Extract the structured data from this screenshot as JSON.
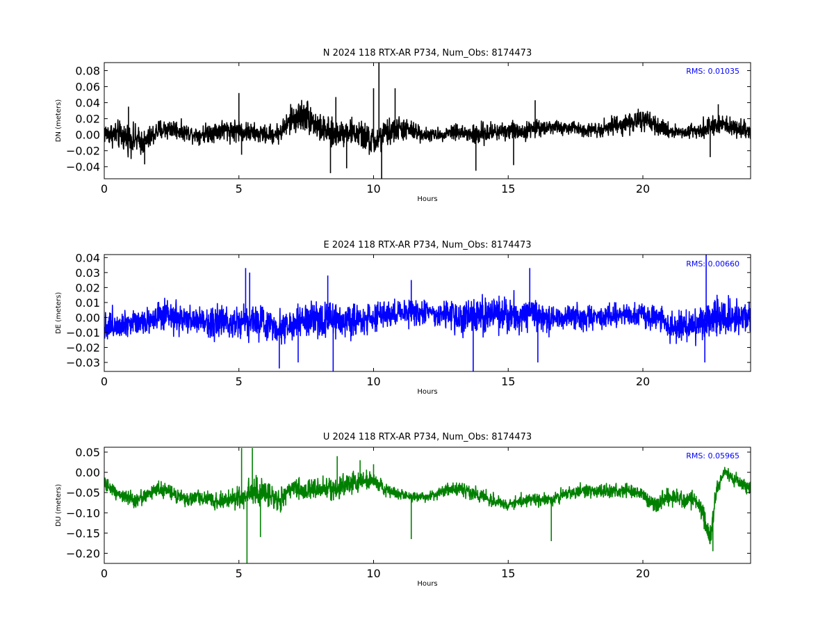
{
  "chart_data": [
    {
      "type": "line",
      "title": "N 2024 118 RTX-AR  P734, Num_Obs: 8174473",
      "xlabel": "Hours",
      "ylabel": "DN (meters)",
      "xlim": [
        0,
        24
      ],
      "ylim": [
        -0.055,
        0.09
      ],
      "xticks": [
        0,
        5,
        10,
        15,
        20
      ],
      "yticks": [
        -0.04,
        -0.02,
        0.0,
        0.02,
        0.04,
        0.06,
        0.08
      ],
      "ytick_labels": [
        "−0.04",
        "−0.02",
        "0.00",
        "0.02",
        "0.04",
        "0.06",
        "0.08"
      ],
      "rms_text": "RMS:  0.01035",
      "rms_color": "#0000ff",
      "series_color": "#000000",
      "grid": false,
      "envelope": {
        "x": [
          0,
          0.5,
          1,
          1.5,
          2,
          2.5,
          3,
          3.5,
          4,
          4.5,
          5,
          5.5,
          6,
          6.5,
          7,
          7.5,
          8,
          8.5,
          9,
          9.5,
          10,
          10.5,
          11,
          11.5,
          12,
          12.5,
          13,
          13.5,
          14,
          14.5,
          15,
          15.5,
          16,
          16.5,
          17,
          17.5,
          18,
          18.5,
          19,
          19.5,
          20,
          20.5,
          21,
          21.5,
          22,
          22.5,
          23,
          23.5,
          24
        ],
        "mean": [
          0.002,
          0.0,
          -0.005,
          -0.01,
          0.005,
          0.008,
          0.003,
          0.0,
          0.004,
          0.006,
          0.005,
          0.002,
          0.0,
          0.002,
          0.02,
          0.025,
          0.008,
          0.0,
          0.005,
          0.0,
          -0.01,
          0.002,
          0.008,
          0.004,
          0.0,
          0.0,
          0.005,
          0.0,
          0.0,
          0.004,
          0.006,
          0.004,
          0.008,
          0.01,
          0.008,
          0.008,
          0.006,
          0.008,
          0.012,
          0.015,
          0.018,
          0.01,
          0.005,
          0.003,
          0.006,
          0.01,
          0.012,
          0.008,
          0.005
        ],
        "amp": [
          0.015,
          0.02,
          0.022,
          0.018,
          0.016,
          0.015,
          0.012,
          0.012,
          0.015,
          0.016,
          0.016,
          0.014,
          0.013,
          0.015,
          0.022,
          0.025,
          0.02,
          0.02,
          0.018,
          0.02,
          0.022,
          0.02,
          0.018,
          0.014,
          0.01,
          0.008,
          0.012,
          0.015,
          0.016,
          0.014,
          0.014,
          0.013,
          0.012,
          0.01,
          0.01,
          0.01,
          0.01,
          0.012,
          0.014,
          0.015,
          0.016,
          0.013,
          0.01,
          0.01,
          0.012,
          0.013,
          0.014,
          0.013,
          0.012
        ]
      },
      "spikes": [
        {
          "x": 0.9,
          "y": 0.035
        },
        {
          "x": 1.5,
          "y": -0.037
        },
        {
          "x": 5.0,
          "y": 0.052
        },
        {
          "x": 5.1,
          "y": -0.025
        },
        {
          "x": 8.4,
          "y": -0.048
        },
        {
          "x": 8.6,
          "y": 0.047
        },
        {
          "x": 9.0,
          "y": -0.042
        },
        {
          "x": 10.0,
          "y": 0.058
        },
        {
          "x": 10.2,
          "y": 0.09
        },
        {
          "x": 10.3,
          "y": -0.055
        },
        {
          "x": 10.8,
          "y": 0.058
        },
        {
          "x": 13.8,
          "y": -0.045
        },
        {
          "x": 15.2,
          "y": -0.038
        },
        {
          "x": 16.0,
          "y": 0.043
        },
        {
          "x": 22.5,
          "y": -0.028
        },
        {
          "x": 22.8,
          "y": 0.038
        }
      ]
    },
    {
      "type": "line",
      "title": "E 2024 118 RTX-AR  P734, Num_Obs: 8174473",
      "xlabel": "Hours",
      "ylabel": "DE (meters)",
      "xlim": [
        0,
        24
      ],
      "ylim": [
        -0.036,
        0.042
      ],
      "xticks": [
        0,
        5,
        10,
        15,
        20
      ],
      "yticks": [
        -0.03,
        -0.02,
        -0.01,
        0.0,
        0.01,
        0.02,
        0.03,
        0.04
      ],
      "ytick_labels": [
        "−0.03",
        "−0.02",
        "−0.01",
        "0.00",
        "0.01",
        "0.02",
        "0.03",
        "0.04"
      ],
      "rms_text": "RMS:  0.00660",
      "rms_color": "#0000ff",
      "series_color": "#0000ff",
      "grid": false,
      "envelope": {
        "x": [
          0,
          0.5,
          1,
          1.5,
          2,
          2.5,
          3,
          3.5,
          4,
          4.5,
          5,
          5.5,
          6,
          6.5,
          7,
          7.5,
          8,
          8.5,
          9,
          9.5,
          10,
          10.5,
          11,
          11.5,
          12,
          12.5,
          13,
          13.5,
          14,
          14.5,
          15,
          15.5,
          16,
          16.5,
          17,
          17.5,
          18,
          18.5,
          19,
          19.5,
          20,
          20.5,
          21,
          21.5,
          22,
          22.5,
          23,
          23.5,
          24
        ],
        "mean": [
          -0.006,
          -0.004,
          -0.003,
          -0.002,
          0.0,
          0.0,
          -0.002,
          -0.002,
          -0.003,
          -0.003,
          -0.002,
          -0.002,
          -0.004,
          -0.006,
          -0.005,
          -0.002,
          -0.002,
          -0.002,
          -0.002,
          -0.001,
          0.0,
          0.002,
          0.003,
          0.004,
          0.003,
          0.002,
          0.0,
          0.0,
          0.001,
          0.002,
          0.002,
          0.002,
          0.001,
          0.0,
          0.0,
          0.0,
          0.0,
          0.0,
          0.001,
          0.002,
          0.002,
          0.0,
          -0.005,
          -0.006,
          -0.004,
          -0.002,
          0.0,
          0.0,
          0.0
        ],
        "amp": [
          0.012,
          0.012,
          0.011,
          0.01,
          0.012,
          0.012,
          0.011,
          0.011,
          0.012,
          0.013,
          0.014,
          0.014,
          0.013,
          0.012,
          0.012,
          0.012,
          0.013,
          0.014,
          0.013,
          0.012,
          0.012,
          0.011,
          0.011,
          0.012,
          0.01,
          0.008,
          0.014,
          0.016,
          0.016,
          0.015,
          0.014,
          0.013,
          0.012,
          0.011,
          0.01,
          0.01,
          0.009,
          0.009,
          0.009,
          0.009,
          0.01,
          0.01,
          0.012,
          0.012,
          0.014,
          0.016,
          0.014,
          0.013,
          0.012
        ]
      },
      "spikes": [
        {
          "x": 5.25,
          "y": 0.033
        },
        {
          "x": 5.4,
          "y": 0.03
        },
        {
          "x": 8.3,
          "y": 0.028
        },
        {
          "x": 8.5,
          "y": -0.036
        },
        {
          "x": 11.4,
          "y": 0.025
        },
        {
          "x": 13.7,
          "y": -0.036
        },
        {
          "x": 15.8,
          "y": 0.033
        },
        {
          "x": 16.1,
          "y": -0.03
        },
        {
          "x": 22.35,
          "y": 0.042
        },
        {
          "x": 22.3,
          "y": -0.03
        },
        {
          "x": 6.5,
          "y": -0.034
        },
        {
          "x": 7.2,
          "y": -0.03
        }
      ]
    },
    {
      "type": "line",
      "title": "U 2024 118 RTX-AR  P734, Num_Obs: 8174473",
      "xlabel": "Hours",
      "ylabel": "DU (meters)",
      "xlim": [
        0,
        24
      ],
      "ylim": [
        -0.225,
        0.062
      ],
      "xticks": [
        0,
        5,
        10,
        15,
        20
      ],
      "yticks": [
        -0.2,
        -0.15,
        -0.1,
        -0.05,
        0.0,
        0.05
      ],
      "ytick_labels": [
        "−0.20",
        "−0.15",
        "−0.10",
        "−0.05",
        "0.00",
        "0.05"
      ],
      "rms_text": "RMS:  0.05965",
      "rms_color": "#0000ff",
      "series_color": "#008000",
      "grid": false,
      "envelope": {
        "x": [
          0,
          0.5,
          1,
          1.5,
          2,
          2.5,
          3,
          3.5,
          4,
          4.5,
          5,
          5.5,
          6,
          6.5,
          7,
          7.5,
          8,
          8.5,
          9,
          9.5,
          10,
          10.5,
          11,
          11.5,
          12,
          12.5,
          13,
          13.5,
          14,
          14.5,
          15,
          15.5,
          16,
          16.5,
          17,
          17.5,
          18,
          18.5,
          19,
          19.5,
          20,
          20.5,
          21,
          21.5,
          22,
          22.25,
          22.5,
          22.75,
          23,
          23.5,
          24
        ],
        "mean": [
          -0.03,
          -0.05,
          -0.07,
          -0.06,
          -0.04,
          -0.05,
          -0.07,
          -0.06,
          -0.07,
          -0.07,
          -0.06,
          -0.05,
          -0.05,
          -0.07,
          -0.04,
          -0.045,
          -0.04,
          -0.04,
          -0.03,
          -0.02,
          -0.02,
          -0.045,
          -0.055,
          -0.06,
          -0.06,
          -0.05,
          -0.04,
          -0.045,
          -0.06,
          -0.07,
          -0.08,
          -0.07,
          -0.065,
          -0.07,
          -0.055,
          -0.05,
          -0.045,
          -0.05,
          -0.045,
          -0.045,
          -0.055,
          -0.08,
          -0.06,
          -0.07,
          -0.07,
          -0.1,
          -0.16,
          -0.04,
          0.0,
          -0.02,
          -0.04
        ],
        "amp": [
          0.02,
          0.02,
          0.025,
          0.02,
          0.02,
          0.02,
          0.02,
          0.02,
          0.02,
          0.025,
          0.04,
          0.045,
          0.04,
          0.035,
          0.03,
          0.03,
          0.03,
          0.03,
          0.03,
          0.03,
          0.025,
          0.02,
          0.015,
          0.015,
          0.015,
          0.015,
          0.02,
          0.02,
          0.02,
          0.02,
          0.02,
          0.02,
          0.02,
          0.02,
          0.02,
          0.02,
          0.02,
          0.02,
          0.02,
          0.02,
          0.02,
          0.025,
          0.025,
          0.025,
          0.025,
          0.03,
          0.03,
          0.025,
          0.02,
          0.02,
          0.02
        ]
      },
      "spikes": [
        {
          "x": 5.1,
          "y": 0.06
        },
        {
          "x": 5.3,
          "y": -0.225
        },
        {
          "x": 5.5,
          "y": 0.06
        },
        {
          "x": 5.8,
          "y": -0.16
        },
        {
          "x": 8.65,
          "y": 0.04
        },
        {
          "x": 11.4,
          "y": -0.165
        },
        {
          "x": 16.6,
          "y": -0.17
        },
        {
          "x": 22.6,
          "y": -0.195
        },
        {
          "x": 10.0,
          "y": 0.02
        },
        {
          "x": 9.5,
          "y": 0.03
        }
      ]
    }
  ]
}
